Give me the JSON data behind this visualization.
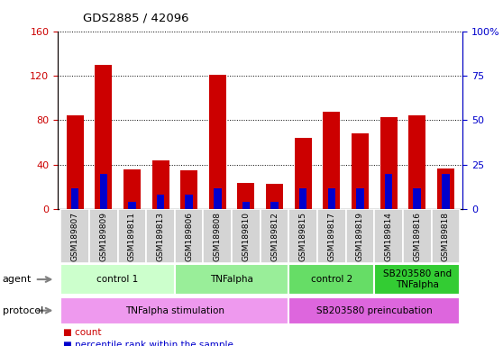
{
  "title": "GDS2885 / 42096",
  "samples": [
    "GSM189807",
    "GSM189809",
    "GSM189811",
    "GSM189813",
    "GSM189806",
    "GSM189808",
    "GSM189810",
    "GSM189812",
    "GSM189815",
    "GSM189817",
    "GSM189819",
    "GSM189814",
    "GSM189816",
    "GSM189818"
  ],
  "count_values": [
    84,
    130,
    36,
    44,
    35,
    121,
    24,
    23,
    64,
    88,
    68,
    83,
    84,
    37
  ],
  "percentile_values": [
    12,
    20,
    4,
    8,
    8,
    12,
    4,
    4,
    12,
    12,
    12,
    20,
    12,
    20
  ],
  "ylim_left": [
    0,
    160
  ],
  "ylim_right": [
    0,
    100
  ],
  "yticks_left": [
    0,
    40,
    80,
    120,
    160
  ],
  "yticks_right": [
    0,
    25,
    50,
    75,
    100
  ],
  "count_color": "#cc0000",
  "percentile_color": "#0000cc",
  "agent_groups": [
    {
      "label": "control 1",
      "start": 0,
      "end": 4,
      "color": "#ccffcc"
    },
    {
      "label": "TNFalpha",
      "start": 4,
      "end": 8,
      "color": "#99ee99"
    },
    {
      "label": "control 2",
      "start": 8,
      "end": 11,
      "color": "#66dd66"
    },
    {
      "label": "SB203580 and\nTNFalpha",
      "start": 11,
      "end": 14,
      "color": "#33cc33"
    }
  ],
  "protocol_groups": [
    {
      "label": "TNFalpha stimulation",
      "start": 0,
      "end": 8,
      "color": "#ee99ee"
    },
    {
      "label": "SB203580 preincubation",
      "start": 8,
      "end": 14,
      "color": "#dd66dd"
    }
  ],
  "agent_label": "agent",
  "protocol_label": "protocol",
  "legend_count_label": "count",
  "legend_percentile_label": "percentile rank within the sample"
}
